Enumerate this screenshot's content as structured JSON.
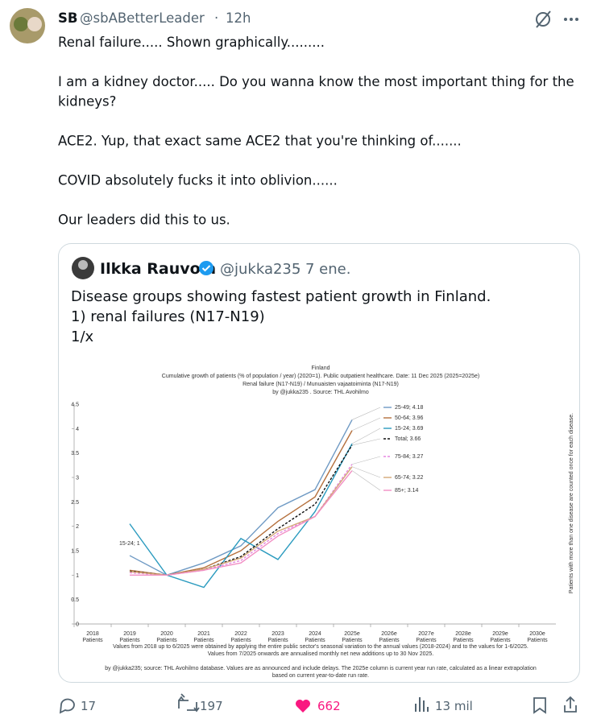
{
  "tweet": {
    "name": "SB",
    "handle": "@sbABetterLeader",
    "time": "12h",
    "text": [
      [
        "Renal failure..... Shown graphically........."
      ],
      [
        "I am a kidney doctor..... Do you wanna know the most important thing for the",
        "kidneys?"
      ],
      [
        "ACE2. Yup, that exact same ACE2 that you're thinking of......."
      ],
      [
        "COVID absolutely fucks it into oblivion......"
      ],
      [
        "Our leaders did this to us."
      ]
    ]
  },
  "quote": {
    "name": "Ilkka Rauvola",
    "handle": "@jukka235",
    "time": "7 ene.",
    "text": [
      "Disease groups showing fastest patient growth in Finland.",
      "1) renal failures (N17-N19)",
      "1/x"
    ]
  },
  "chart_data": {
    "type": "line",
    "title": "Finland",
    "subtitle": [
      "Cumulative growth of patients (% of population / year) (2020=1).  Public outpatient healthcare. Date: 11 Dec 2025 (2025=2025e)",
      "Renal failure (N17-N19) / Munuaisten vajaatoiminta (N17-N19)",
      "by @jukka235 . Source: THL Avohilmo"
    ],
    "y2_label": "Patients with more than one disease are counted once for each disease.",
    "categories": [
      "2018",
      "2019",
      "2020",
      "2021",
      "2022",
      "2023",
      "2024",
      "2025e",
      "2026e",
      "2027e",
      "2028e",
      "2029e",
      "2030e"
    ],
    "category_sublabel": "Patients",
    "series": [
      {
        "name": "25-49; 4.18",
        "color": "#6f9ac4",
        "dash": false,
        "values": [
          null,
          1.4,
          1.0,
          1.25,
          1.6,
          2.38,
          2.75,
          4.18,
          null,
          null,
          null,
          null,
          null
        ]
      },
      {
        "name": "50-64; 3.96",
        "color": "#b5703d",
        "dash": false,
        "values": [
          null,
          1.1,
          1.0,
          1.15,
          1.5,
          2.1,
          2.6,
          3.96,
          null,
          null,
          null,
          null,
          null
        ]
      },
      {
        "name": "15-24; 3.69",
        "color": "#2b9bbf",
        "dash": false,
        "values": [
          null,
          2.05,
          1.0,
          0.75,
          1.75,
          1.32,
          2.3,
          3.69,
          null,
          null,
          null,
          null,
          null
        ]
      },
      {
        "name": "Total; 3.66",
        "color": "#111111",
        "dash": true,
        "values": [
          null,
          1.08,
          1.0,
          1.12,
          1.38,
          1.95,
          2.45,
          3.66,
          null,
          null,
          null,
          null,
          null
        ]
      },
      {
        "name": "75-84; 3.27",
        "color": "#e585e0",
        "dash": true,
        "values": [
          null,
          1.05,
          1.0,
          1.1,
          1.3,
          1.85,
          2.2,
          3.27,
          null,
          null,
          null,
          null,
          null
        ]
      },
      {
        "name": "65-74; 3.22",
        "color": "#d4a877",
        "dash": false,
        "values": [
          null,
          1.07,
          1.0,
          1.12,
          1.35,
          1.9,
          2.2,
          3.22,
          null,
          null,
          null,
          null,
          null
        ]
      },
      {
        "name": "85+; 3.14",
        "color": "#f28fc4",
        "dash": false,
        "values": [
          null,
          1.0,
          1.0,
          1.1,
          1.25,
          1.8,
          2.2,
          3.14,
          null,
          null,
          null,
          null,
          null
        ]
      }
    ],
    "annotation": "15-24; 1",
    "ylim": [
      0,
      4.5
    ],
    "yticks": [
      0,
      0.5,
      1,
      1.5,
      2,
      2.5,
      3,
      3.5,
      4,
      4.5
    ],
    "footnotes": [
      "Values from 2018 up to 6/2025 were obtained by applying the entire public sector's seasonal variation to the annual values (2018-2024) and to the values for 1-6/2025.",
      "Values from 7/2025 onwards are annualised monthly net new additions up to 30 Nov 2025.",
      "by @jukka235; source: THL Avohilmo database. Values are as announced and include delays. The 2025e column is current year run rate, calculated as a linear extrapolation",
      "based on current year-to-date run rate."
    ]
  },
  "actions": {
    "replies": "17",
    "reposts": "197",
    "likes": "662",
    "views": "13 mil"
  }
}
